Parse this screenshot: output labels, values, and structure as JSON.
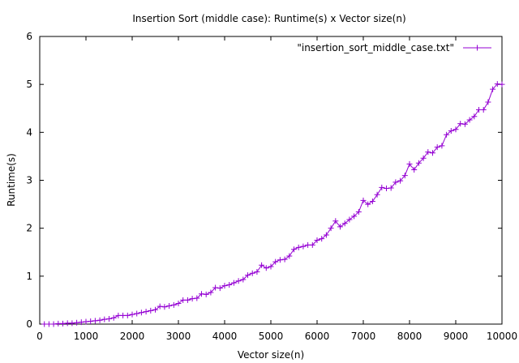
{
  "chart_data": {
    "type": "line",
    "title": "Insertion Sort (middle case): Runtime(s) x Vector size(n)",
    "xlabel": "Vector size(n)",
    "ylabel": "Runtime(s)",
    "xlim": [
      0,
      10000
    ],
    "ylim": [
      0,
      6
    ],
    "xticks": [
      0,
      1000,
      2000,
      3000,
      4000,
      5000,
      6000,
      7000,
      8000,
      9000,
      10000
    ],
    "yticks": [
      0,
      1,
      2,
      3,
      4,
      5,
      6
    ],
    "grid": false,
    "legend_position": "top-right",
    "series": [
      {
        "name": "\"insertion_sort_middle_case.txt\"",
        "color": "#9400d3",
        "marker": "plus",
        "x": [
          100,
          200,
          300,
          400,
          500,
          600,
          700,
          800,
          900,
          1000,
          1100,
          1200,
          1300,
          1400,
          1500,
          1600,
          1700,
          1800,
          1900,
          2000,
          2100,
          2200,
          2300,
          2400,
          2500,
          2600,
          2700,
          2800,
          2900,
          3000,
          3100,
          3200,
          3300,
          3400,
          3500,
          3600,
          3700,
          3800,
          3900,
          4000,
          4100,
          4200,
          4300,
          4400,
          4500,
          4600,
          4700,
          4800,
          4900,
          5000,
          5100,
          5200,
          5300,
          5400,
          5500,
          5600,
          5700,
          5800,
          5900,
          6000,
          6100,
          6200,
          6300,
          6400,
          6500,
          6600,
          6700,
          6800,
          6900,
          7000,
          7100,
          7200,
          7300,
          7400,
          7500,
          7600,
          7700,
          7800,
          7900,
          8000,
          8100,
          8200,
          8300,
          8400,
          8500,
          8600,
          8700,
          8800,
          8900,
          9000,
          9100,
          9200,
          9300,
          9400,
          9500,
          9600,
          9700,
          9800,
          9900,
          10000
        ],
        "y": [
          0.0,
          0.0,
          0.0,
          0.01,
          0.01,
          0.02,
          0.02,
          0.03,
          0.04,
          0.05,
          0.06,
          0.07,
          0.08,
          0.1,
          0.11,
          0.13,
          0.18,
          0.18,
          0.18,
          0.2,
          0.22,
          0.24,
          0.26,
          0.28,
          0.3,
          0.37,
          0.36,
          0.38,
          0.4,
          0.43,
          0.5,
          0.5,
          0.53,
          0.54,
          0.63,
          0.62,
          0.66,
          0.76,
          0.75,
          0.8,
          0.82,
          0.86,
          0.9,
          0.93,
          1.02,
          1.06,
          1.09,
          1.23,
          1.17,
          1.2,
          1.3,
          1.34,
          1.35,
          1.42,
          1.56,
          1.6,
          1.62,
          1.65,
          1.65,
          1.75,
          1.78,
          1.86,
          2.0,
          2.15,
          2.03,
          2.1,
          2.18,
          2.25,
          2.34,
          2.58,
          2.5,
          2.56,
          2.7,
          2.85,
          2.83,
          2.84,
          2.96,
          2.99,
          3.1,
          3.34,
          3.22,
          3.36,
          3.46,
          3.59,
          3.57,
          3.69,
          3.72,
          3.95,
          4.03,
          4.06,
          4.18,
          4.17,
          4.26,
          4.33,
          4.47,
          4.47,
          4.63,
          4.9,
          5.01,
          5.0
        ]
      }
    ]
  }
}
